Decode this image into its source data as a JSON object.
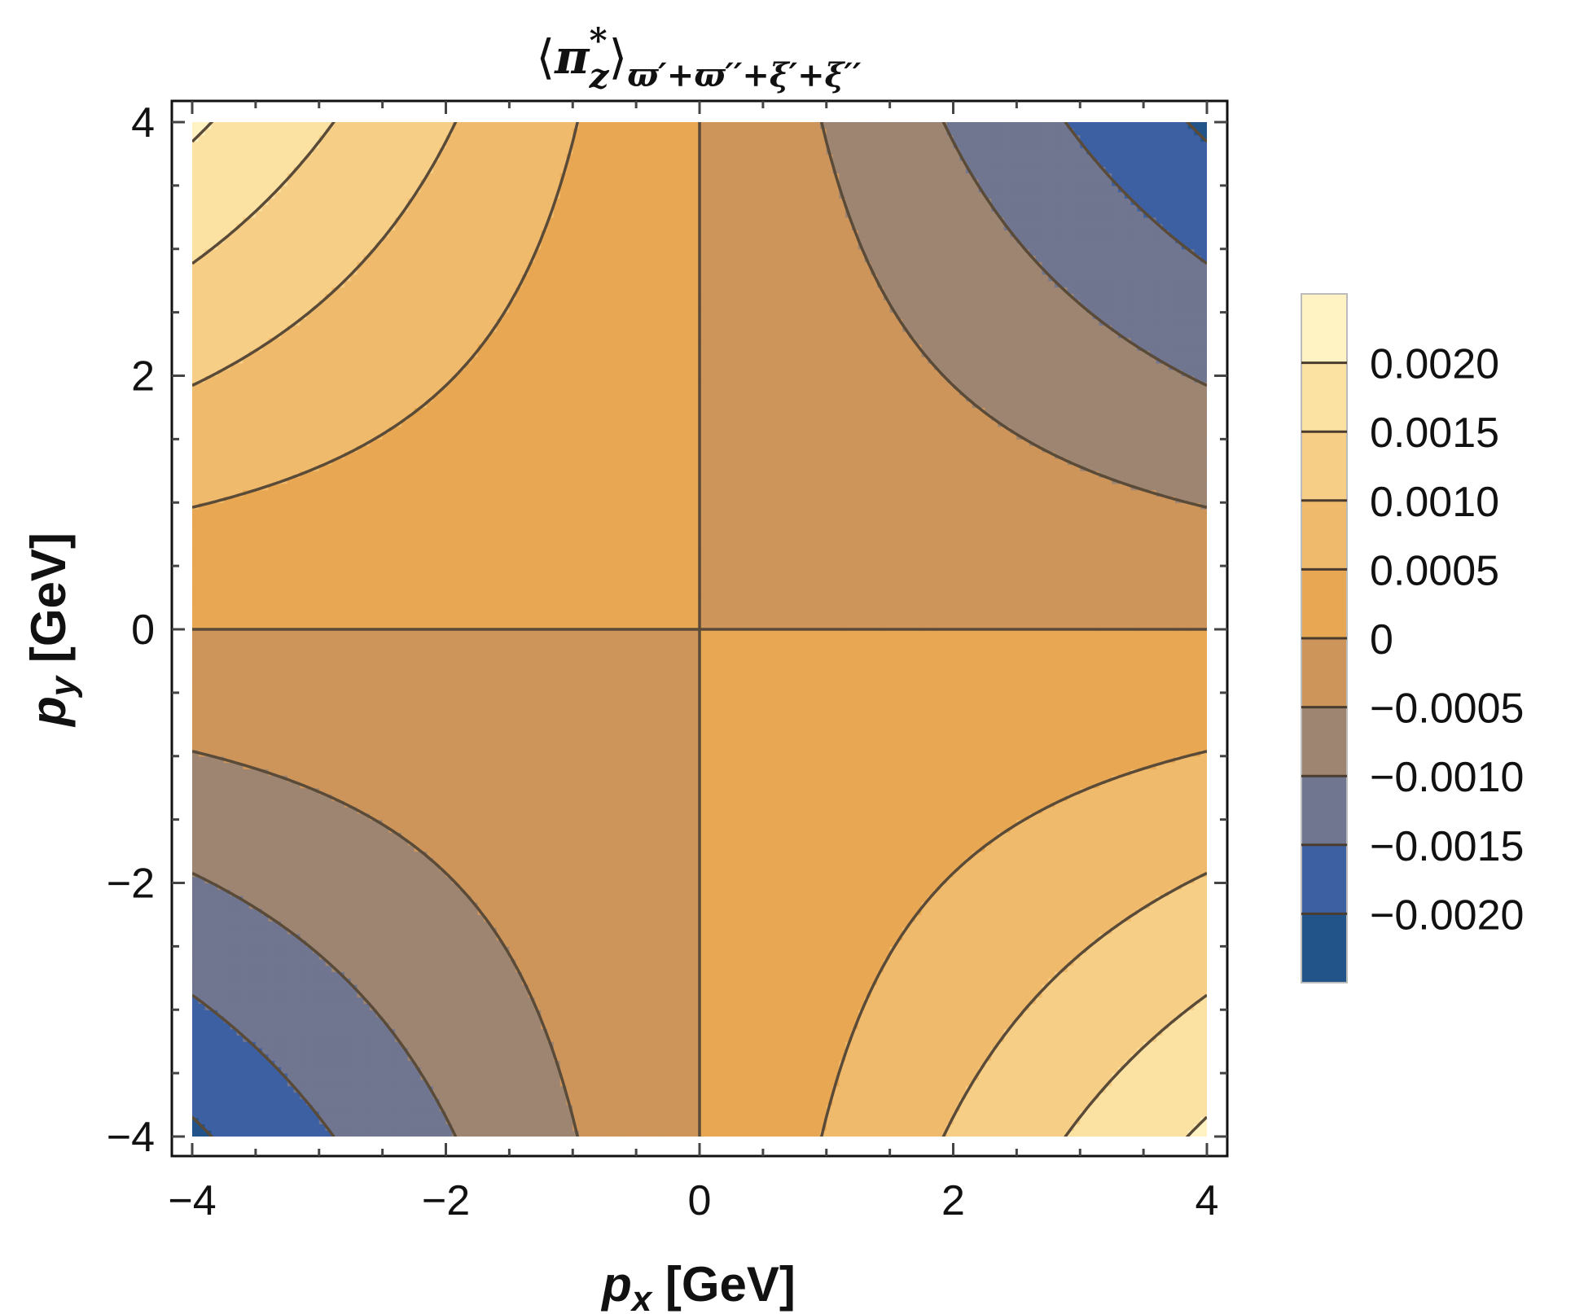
{
  "chart_data": {
    "type": "heatmap",
    "subtype": "contour",
    "title": {
      "open": "⟨",
      "symbol": "π",
      "sup": "*",
      "sub": "z",
      "close": "⟩",
      "subscript": "ϖ′+ϖ′′+ξ′+ξ′′"
    },
    "xlabel": {
      "var": "p",
      "sub": "x",
      "unit": " [GeV]"
    },
    "ylabel": {
      "var": "p",
      "sub": "y",
      "unit": " [GeV]"
    },
    "xlim": [
      -4,
      4
    ],
    "ylim": [
      -4,
      4
    ],
    "x_ticks": [
      -4,
      -2,
      0,
      2,
      4
    ],
    "y_ticks": [
      -4,
      -2,
      0,
      2,
      4
    ],
    "x_tick_labels": [
      "−4",
      "−2",
      "0",
      "2",
      "4"
    ],
    "y_tick_labels": [
      "−4",
      "−2",
      "0",
      "2",
      "4"
    ],
    "grid": false,
    "legend": "right",
    "function_model": "z ≈ -1.3e-4 * x * y",
    "contour_levels": [
      -0.002,
      -0.0015,
      -0.001,
      -0.0005,
      0,
      0.0005,
      0.001,
      0.0015,
      0.002
    ],
    "colorbar": {
      "range": [
        -0.0025,
        0.0025
      ],
      "ticks": [
        0.002,
        0.0015,
        0.001,
        0.0005,
        0,
        -0.0005,
        -0.001,
        -0.0015,
        -0.002
      ],
      "labels": [
        "0.0020",
        "0.0015",
        "0.0010",
        "0.0005",
        "0",
        "−0.0005",
        "−0.0010",
        "−0.0015",
        "−0.0020"
      ]
    },
    "band_colors": [
      "#22548a",
      "#3d60a3",
      "#707590",
      "#9d8572",
      "#cd955a",
      "#e8a752",
      "#f0ba6c",
      "#f6ce86",
      "#fce2a2",
      "#fff3c3"
    ],
    "contour_line_color": "#5a4a38"
  }
}
